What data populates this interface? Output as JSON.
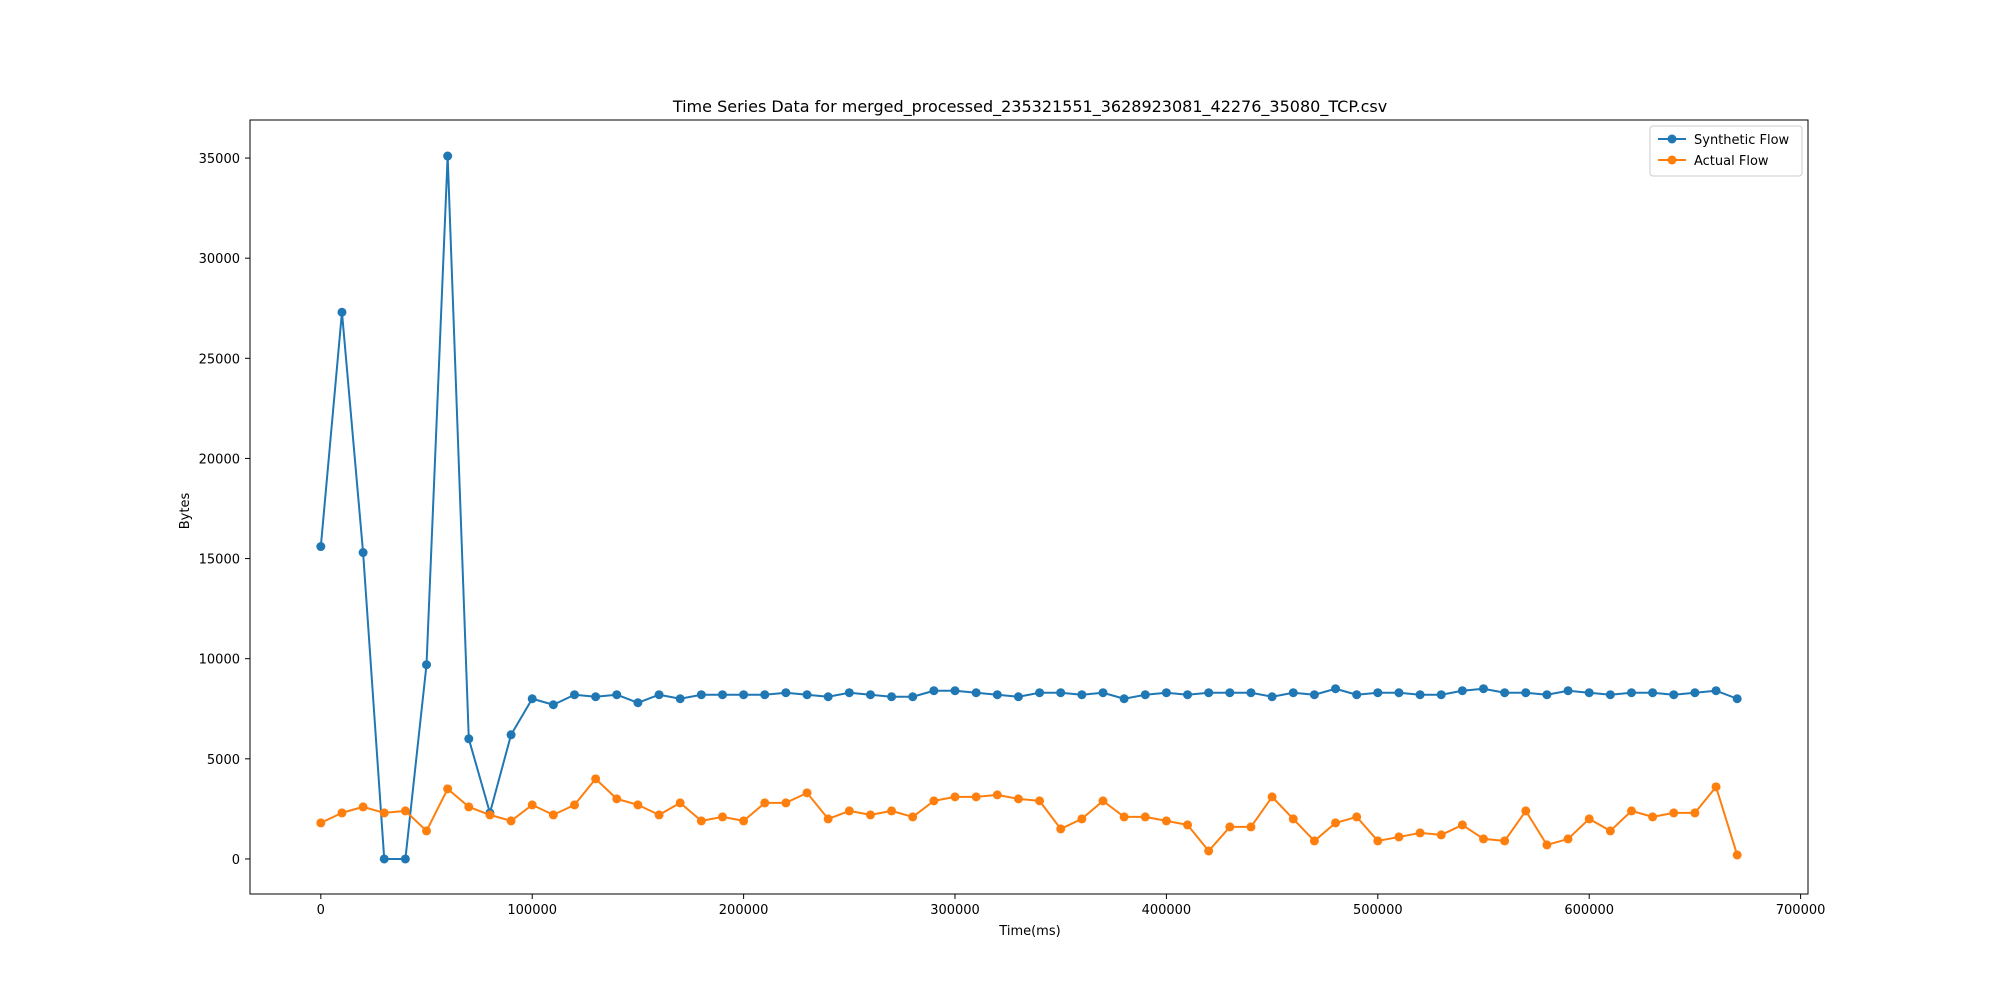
{
  "chart_data": {
    "type": "line",
    "title": "Time Series Data for merged_processed_235321551_3628923081_42276_35080_TCP.csv",
    "xlabel": "Time(ms)",
    "ylabel": "Bytes",
    "xlim": [
      -33500,
      703500
    ],
    "ylim": [
      -1750,
      36900
    ],
    "xticks": [
      0,
      100000,
      200000,
      300000,
      400000,
      500000,
      600000,
      700000
    ],
    "yticks": [
      0,
      5000,
      10000,
      15000,
      20000,
      25000,
      30000,
      35000
    ],
    "grid": false,
    "legend_position": "top-right",
    "x": [
      0,
      10000,
      20000,
      30000,
      40000,
      50000,
      60000,
      70000,
      80000,
      90000,
      100000,
      110000,
      120000,
      130000,
      140000,
      150000,
      160000,
      170000,
      180000,
      190000,
      200000,
      210000,
      220000,
      230000,
      240000,
      250000,
      260000,
      270000,
      280000,
      290000,
      300000,
      310000,
      320000,
      330000,
      340000,
      350000,
      360000,
      370000,
      380000,
      390000,
      400000,
      410000,
      420000,
      430000,
      440000,
      450000,
      460000,
      470000,
      480000,
      490000,
      500000,
      510000,
      520000,
      530000,
      540000,
      550000,
      560000,
      570000,
      580000,
      590000,
      600000,
      610000,
      620000,
      630000,
      640000,
      650000,
      660000,
      670000
    ],
    "series": [
      {
        "name": "Synthetic Flow",
        "color": "#1f77b4",
        "values": [
          15600,
          27300,
          15300,
          0,
          0,
          9700,
          35100,
          6000,
          2300,
          6200,
          8000,
          7700,
          8200,
          8100,
          8200,
          7800,
          8200,
          8000,
          8200,
          8200,
          8200,
          8200,
          8300,
          8200,
          8100,
          8300,
          8200,
          8100,
          8100,
          8400,
          8400,
          8300,
          8200,
          8100,
          8300,
          8300,
          8200,
          8300,
          8000,
          8200,
          8300,
          8200,
          8300,
          8300,
          8300,
          8100,
          8300,
          8200,
          8500,
          8200,
          8300,
          8300,
          8200,
          8200,
          8400,
          8500,
          8300,
          8300,
          8200,
          8400,
          8300,
          8200,
          8300,
          8300,
          8200,
          8300,
          8400,
          8000
        ]
      },
      {
        "name": "Actual Flow",
        "color": "#ff7f0e",
        "values": [
          1800,
          2300,
          2600,
          2300,
          2400,
          1400,
          3500,
          2600,
          2200,
          1900,
          2700,
          2200,
          2700,
          4000,
          3000,
          2700,
          2200,
          2800,
          1900,
          2100,
          1900,
          2800,
          2800,
          3300,
          2000,
          2400,
          2200,
          2400,
          2100,
          2900,
          3100,
          3100,
          3200,
          3000,
          2900,
          1500,
          2000,
          2900,
          2100,
          2100,
          1900,
          1700,
          400,
          1600,
          1600,
          3100,
          2000,
          900,
          1800,
          2100,
          900,
          1100,
          1300,
          1200,
          1700,
          1000,
          900,
          2400,
          700,
          1000,
          2000,
          1400,
          2400,
          2100,
          2300,
          2300,
          3600,
          200
        ]
      }
    ]
  }
}
